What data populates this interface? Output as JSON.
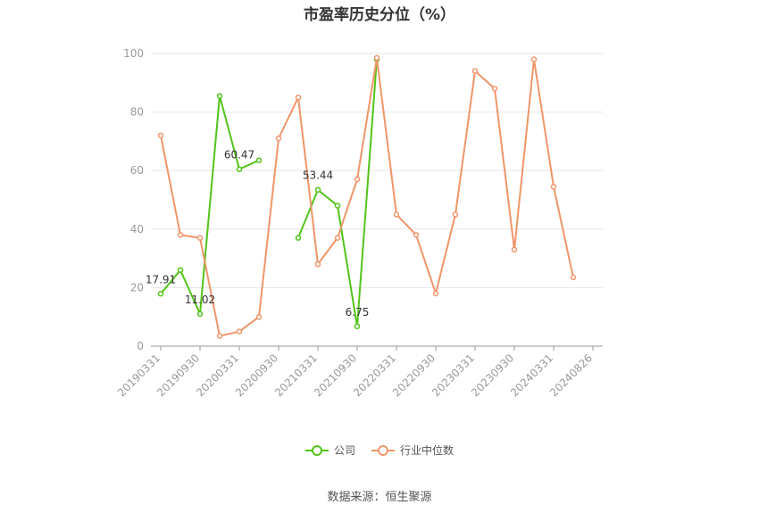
{
  "chart_data": {
    "type": "line",
    "title": "市盈率历史分位（%）",
    "xlabel": "",
    "ylabel": "",
    "ylim": [
      0,
      100
    ],
    "yticks": [
      0,
      20,
      40,
      60,
      80,
      100
    ],
    "grid": true,
    "legend_position": "bottom",
    "x": [
      "20190331",
      "20190630",
      "20190930",
      "20191231",
      "20200331",
      "20200630",
      "20200930",
      "20201231",
      "20210331",
      "20210630",
      "20210930",
      "20211231",
      "20220331",
      "20220630",
      "20220930",
      "20221231",
      "20230331",
      "20230630",
      "20230930",
      "20231231",
      "20240331",
      "20240630",
      "20240826"
    ],
    "x_tick_labels": [
      "20190331",
      "20190930",
      "20200331",
      "20200930",
      "20210331",
      "20210930",
      "20220331",
      "20220930",
      "20230331",
      "20230930",
      "20240331",
      "20240826"
    ],
    "series": [
      {
        "name": "公司",
        "color": "#52c41a",
        "values": [
          17.91,
          26,
          11.02,
          85.5,
          60.47,
          63.5,
          null,
          37,
          53.44,
          48,
          6.75,
          98,
          null,
          null,
          null,
          null,
          null,
          null,
          null,
          null,
          null,
          null,
          null
        ],
        "data_labels": {
          "0": "17.91",
          "2": "11.02",
          "4": "60.47",
          "8": "53.44",
          "10": "6.75"
        }
      },
      {
        "name": "行业中位数",
        "color": "#f0956a",
        "values": [
          72,
          38,
          37,
          3.5,
          5,
          10,
          71,
          85,
          28,
          37,
          57,
          98.5,
          45,
          38,
          18,
          45,
          94,
          88,
          33,
          98,
          54.5,
          23.5,
          null
        ]
      }
    ]
  },
  "source_text": "数据来源：恒生聚源"
}
